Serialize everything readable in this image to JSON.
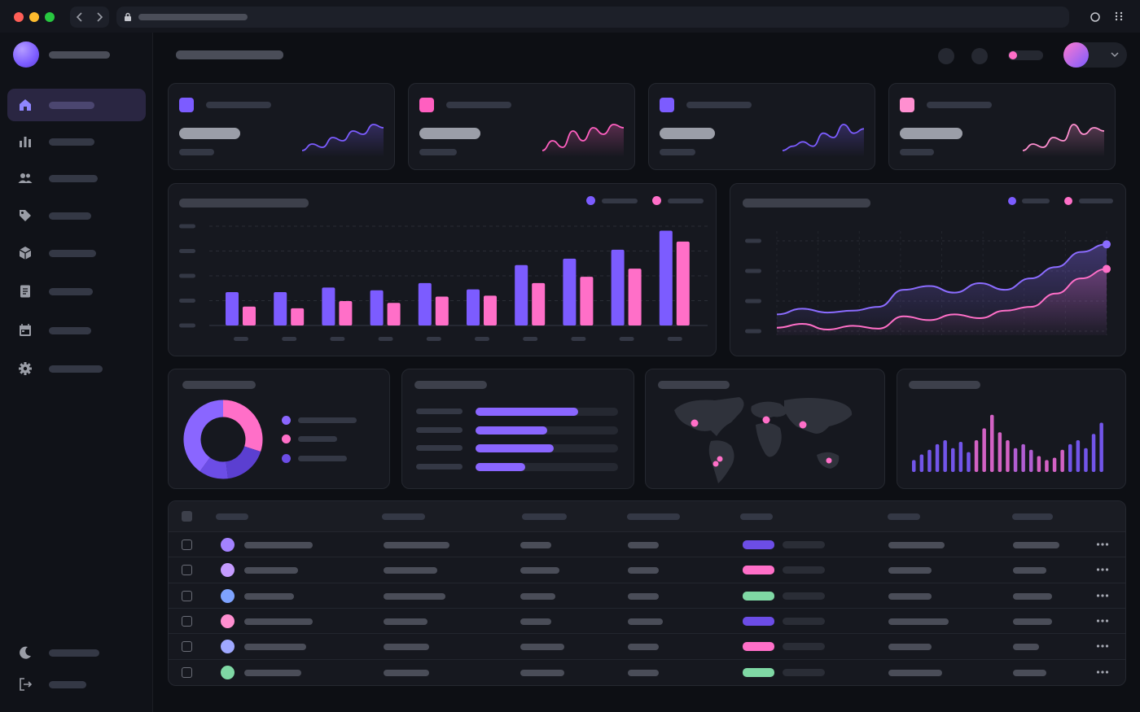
{
  "browser": {
    "traffic_lights": [
      "#ff5f57",
      "#febc2e",
      "#28c840"
    ],
    "icons": [
      "chevron-left-icon",
      "chevron-right-icon",
      "lock-icon",
      "shield-icon",
      "grid-icon"
    ]
  },
  "sidebar": {
    "items": [
      {
        "icon": "home-icon"
      },
      {
        "icon": "bar-chart-icon"
      },
      {
        "icon": "users-icon"
      },
      {
        "icon": "tag-icon"
      },
      {
        "icon": "box-icon"
      },
      {
        "icon": "document-icon"
      },
      {
        "icon": "calendar-icon"
      },
      {
        "icon": "gear-icon"
      }
    ],
    "footer": [
      {
        "icon": "moon-icon"
      },
      {
        "icon": "logout-icon"
      }
    ]
  },
  "theme": {
    "accent_purple": "#7c5cff",
    "accent_pink": "#ff6fc8",
    "accent_green": "#7fd8a4",
    "card": "#16181f"
  },
  "kpi_cards": [
    {
      "color": "#7c5cff",
      "spark": [
        4,
        6,
        5,
        8,
        7,
        10,
        9,
        12,
        11
      ]
    },
    {
      "color": "#ff5fc0",
      "spark": [
        3,
        6,
        4,
        9,
        6,
        10,
        8,
        11,
        10
      ]
    },
    {
      "color": "#7c5cff",
      "spark": [
        4,
        5,
        6,
        5,
        8,
        7,
        10,
        8,
        9
      ]
    },
    {
      "color": "#ff8fd0",
      "spark": [
        3,
        5,
        4,
        7,
        6,
        11,
        8,
        10,
        9
      ]
    }
  ],
  "chart_data": [
    {
      "type": "bar",
      "series": [
        {
          "color": "#7c5cff",
          "values": [
            37,
            37,
            42,
            39,
            47,
            40,
            67,
            74,
            84,
            105
          ]
        },
        {
          "color": "#ff6fc8",
          "values": [
            21,
            19,
            27,
            25,
            32,
            33,
            47,
            54,
            63,
            93
          ]
        }
      ],
      "ylim": [
        0,
        110
      ],
      "grid": true
    },
    {
      "type": "area",
      "series": [
        {
          "color": "#8b6cff",
          "values": [
            22,
            28,
            24,
            26,
            30,
            48,
            52,
            45,
            55,
            48,
            60,
            72,
            88,
            96
          ]
        },
        {
          "color": "#ff6fc8",
          "values": [
            8,
            12,
            6,
            10,
            7,
            20,
            16,
            22,
            18,
            26,
            30,
            44,
            60,
            70
          ]
        }
      ],
      "ylim": [
        0,
        110
      ],
      "grid": true
    },
    {
      "type": "pie",
      "values": [
        30,
        18,
        12,
        40
      ],
      "colors": [
        "#ff6fc8",
        "#5b3fd1",
        "#6c4de6",
        "#8a66ff"
      ]
    },
    {
      "type": "bar",
      "values": [
        72,
        50,
        55,
        35
      ],
      "ylim": [
        0,
        100
      ],
      "color": "#8a66ff"
    },
    {
      "type": "bar",
      "values": [
        15,
        22,
        28,
        35,
        40,
        30,
        38,
        25,
        40,
        55,
        72,
        50,
        40,
        30,
        35,
        28,
        20,
        15,
        18,
        28,
        35,
        40,
        30,
        48,
        62
      ],
      "ylim": [
        0,
        80
      ]
    }
  ],
  "map": {
    "pins": 6,
    "color": "#ff6fc8"
  },
  "table": {
    "avatars": [
      "#a382ff",
      "#c59cff",
      "#7ea3ff",
      "#ff8fd0",
      "#9fa8ff",
      "#7fd8a4"
    ],
    "status_colors": [
      "#6c4de6",
      "#ff6fc8",
      "#7fd8a4",
      "#6c4de6",
      "#ff6fc8",
      "#7fd8a4"
    ],
    "row_action_icon": "more-horizontal-icon"
  }
}
